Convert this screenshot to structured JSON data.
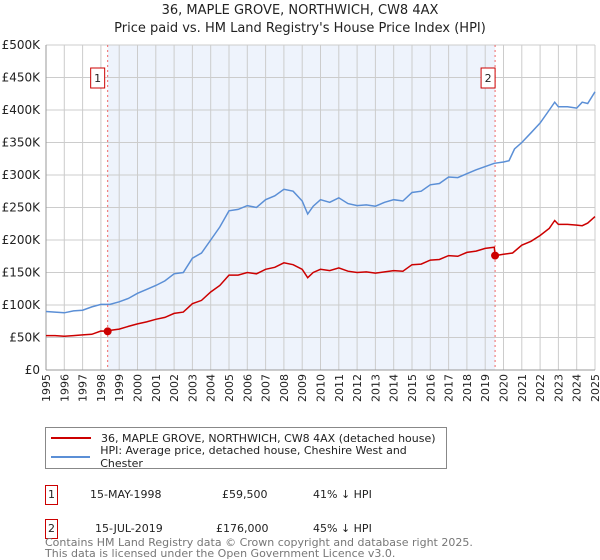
{
  "title": "36, MAPLE GROVE, NORTHWICH, CW8 4AX",
  "subtitle": "Price paid vs. HM Land Registry's House Price Index (HPI)",
  "legend": {
    "property": "36, MAPLE GROVE, NORTHWICH, CW8 4AX (detached house)",
    "hpi": "HPI: Average price, detached house, Cheshire West and Chester"
  },
  "sales": [
    {
      "num": "1",
      "date": "15-MAY-1998",
      "price": "£59,500",
      "hpi_diff": "41% ↓ HPI",
      "year": 1998.37,
      "value": 59500
    },
    {
      "num": "2",
      "date": "15-JUL-2019",
      "price": "£176,000",
      "hpi_diff": "45% ↓ HPI",
      "year": 2019.54,
      "value": 176000
    }
  ],
  "footer": {
    "line1": "Contains HM Land Registry data © Crown copyright and database right 2025.",
    "line2": "This data is licensed under the Open Government Licence v3.0."
  },
  "colors": {
    "property": "#cc0000",
    "hpi": "#5b8fd6",
    "shade": "#eef3fc"
  },
  "chart_data": {
    "type": "line",
    "xlim": [
      1995,
      2025
    ],
    "ylim": [
      0,
      500000
    ],
    "grid": true,
    "legend_position": "bottom",
    "x_ticks": [
      "1995",
      "1996",
      "1997",
      "1998",
      "1999",
      "2000",
      "2001",
      "2002",
      "2003",
      "2004",
      "2005",
      "2006",
      "2007",
      "2008",
      "2009",
      "2010",
      "2011",
      "2012",
      "2013",
      "2014",
      "2015",
      "2016",
      "2017",
      "2018",
      "2019",
      "2020",
      "2021",
      "2022",
      "2023",
      "2024",
      "2025"
    ],
    "y_ticks": [
      "£0",
      "£50K",
      "£100K",
      "£150K",
      "£200K",
      "£250K",
      "£300K",
      "£350K",
      "£400K",
      "£450K",
      "£500K"
    ],
    "series": [
      {
        "name": "HPI: Average price, detached house, Cheshire West and Chester",
        "x": [
          1995,
          1995.5,
          1996,
          1996.5,
          1997,
          1997.5,
          1998,
          1998.5,
          1999,
          1999.5,
          2000,
          2000.5,
          2001,
          2001.5,
          2002,
          2002.5,
          2003,
          2003.5,
          2004,
          2004.5,
          2005,
          2005.5,
          2006,
          2006.5,
          2007,
          2007.5,
          2008,
          2008.5,
          2009,
          2009.3,
          2009.6,
          2010,
          2010.5,
          2011,
          2011.5,
          2012,
          2012.5,
          2013,
          2013.5,
          2014,
          2014.5,
          2015,
          2015.5,
          2016,
          2016.5,
          2017,
          2017.5,
          2018,
          2018.5,
          2019,
          2019.5,
          2020,
          2020.3,
          2020.6,
          2021,
          2021.5,
          2022,
          2022.5,
          2022.8,
          2023,
          2023.5,
          2024,
          2024.3,
          2024.6,
          2025
        ],
        "values": [
          90000,
          89000,
          88000,
          91000,
          92000,
          97000,
          101000,
          101000,
          105000,
          110000,
          118000,
          124000,
          130000,
          137000,
          148000,
          150000,
          172000,
          180000,
          200000,
          220000,
          245000,
          247000,
          253000,
          250000,
          262000,
          268000,
          278000,
          275000,
          260000,
          240000,
          252000,
          262000,
          258000,
          265000,
          256000,
          253000,
          254000,
          252000,
          258000,
          262000,
          260000,
          273000,
          275000,
          285000,
          287000,
          297000,
          296000,
          302000,
          308000,
          313000,
          318000,
          320000,
          322000,
          340000,
          350000,
          365000,
          380000,
          400000,
          412000,
          405000,
          405000,
          403000,
          412000,
          410000,
          428000
        ]
      },
      {
        "name": "36, MAPLE GROVE, NORTHWICH, CW8 4AX (detached house)",
        "x": [
          1995,
          1995.5,
          1996,
          1996.5,
          1997,
          1997.5,
          1998,
          1998.37,
          1998.5,
          1999,
          1999.5,
          2000,
          2000.5,
          2001,
          2001.5,
          2002,
          2002.5,
          2003,
          2003.5,
          2004,
          2004.5,
          2005,
          2005.5,
          2006,
          2006.5,
          2007,
          2007.5,
          2008,
          2008.5,
          2009,
          2009.3,
          2009.6,
          2010,
          2010.5,
          2011,
          2011.5,
          2012,
          2012.5,
          2013,
          2013.5,
          2014,
          2014.5,
          2015,
          2015.5,
          2016,
          2016.5,
          2017,
          2017.5,
          2018,
          2018.5,
          2019,
          2019.5,
          2019.54,
          2020,
          2020.5,
          2021,
          2021.5,
          2022,
          2022.5,
          2022.8,
          2023,
          2023.5,
          2024,
          2024.3,
          2024.6,
          2025
        ],
        "values": [
          53000,
          53000,
          52000,
          53000,
          54000,
          55000,
          60000,
          59500,
          61000,
          63000,
          67000,
          71000,
          74000,
          78000,
          81000,
          87000,
          89000,
          102000,
          107000,
          120000,
          130000,
          146000,
          146000,
          150000,
          148000,
          155000,
          158000,
          165000,
          162000,
          155000,
          142000,
          150000,
          155000,
          153000,
          157000,
          152000,
          150000,
          151000,
          149000,
          151000,
          153000,
          152000,
          162000,
          163000,
          169000,
          170000,
          176000,
          175000,
          181000,
          183000,
          187000,
          189000,
          176000,
          178000,
          180000,
          192000,
          198000,
          207000,
          218000,
          230000,
          224000,
          224000,
          223000,
          222000,
          226000,
          236000
        ]
      }
    ],
    "annotations": [
      "1",
      "2"
    ]
  }
}
